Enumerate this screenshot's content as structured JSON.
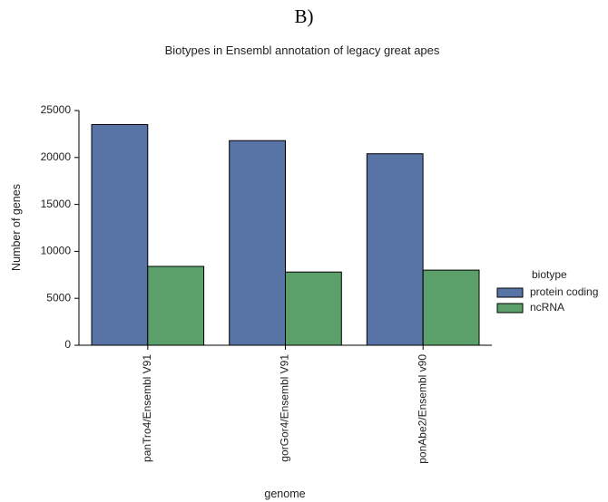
{
  "panel_label": "B)",
  "chart_data": {
    "type": "bar",
    "title": "Biotypes in Ensembl annotation of legacy great apes",
    "xlabel": "genome",
    "ylabel": "Number of genes",
    "categories": [
      "panTro4/Ensembl V91",
      "gorGor4/Ensembl V91",
      "ponAbe2/Ensembl v90"
    ],
    "series": [
      {
        "name": "protein coding",
        "color": "#5874a6",
        "values": [
          23500,
          21800,
          20400
        ]
      },
      {
        "name": "ncRNA",
        "color": "#5ba06b",
        "values": [
          8400,
          7800,
          8000
        ]
      }
    ],
    "ylim": [
      0,
      25000
    ],
    "yticks": [
      0,
      5000,
      10000,
      15000,
      20000,
      25000
    ],
    "legend_title": "biotype",
    "legend_position": "right",
    "grid": false
  }
}
